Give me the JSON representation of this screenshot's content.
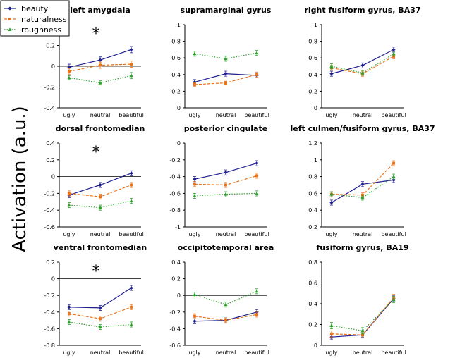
{
  "figure": {
    "ylabel": "Activation (a.u.)"
  },
  "legend": [
    {
      "name": "beauty",
      "color": "#1f1f8f",
      "marker": "diamond",
      "dash": "solid"
    },
    {
      "name": "naturalness",
      "color": "#e8731a",
      "marker": "square",
      "dash": "dashed"
    },
    {
      "name": "roughness",
      "color": "#2ea02e",
      "marker": "triangle",
      "dash": "dotted"
    }
  ],
  "chart_data": [
    {
      "type": "line",
      "title": "left amygdala",
      "categories": [
        "ugly",
        "neutral",
        "beautiful"
      ],
      "ylim": [
        -0.4,
        0.4
      ],
      "yticks": [
        "-0.4",
        "-0.2",
        "0",
        "0.2",
        "0.4"
      ],
      "star": "*",
      "series": [
        {
          "name": "beauty",
          "values": [
            -0.01,
            0.06,
            0.16
          ],
          "err": [
            0.03,
            0.03,
            0.03
          ]
        },
        {
          "name": "naturalness",
          "values": [
            -0.05,
            0.01,
            0.02
          ],
          "err": [
            0.03,
            0.03,
            0.03
          ]
        },
        {
          "name": "roughness",
          "values": [
            -0.11,
            -0.16,
            -0.09
          ],
          "err": [
            0.02,
            0.02,
            0.03
          ]
        }
      ]
    },
    {
      "type": "line",
      "title": "supramarginal gyrus",
      "categories": [
        "ugly",
        "neutral",
        "beautiful"
      ],
      "ylim": [
        0,
        1
      ],
      "yticks": [
        "0",
        "0.2",
        "0.4",
        "0.6",
        "0.8",
        "1"
      ],
      "star": "",
      "series": [
        {
          "name": "beauty",
          "values": [
            0.31,
            0.41,
            0.39
          ],
          "err": [
            0.03,
            0.03,
            0.03
          ]
        },
        {
          "name": "naturalness",
          "values": [
            0.28,
            0.3,
            0.4
          ],
          "err": [
            0.02,
            0.02,
            0.03
          ]
        },
        {
          "name": "roughness",
          "values": [
            0.65,
            0.59,
            0.66
          ],
          "err": [
            0.03,
            0.03,
            0.03
          ]
        }
      ]
    },
    {
      "type": "line",
      "title": "right fusiform gyrus, BA37",
      "categories": [
        "ugly",
        "neutral",
        "beautiful"
      ],
      "ylim": [
        0,
        1
      ],
      "yticks": [
        "0",
        "0.2",
        "0.4",
        "0.6",
        "0.8",
        "1"
      ],
      "star": "",
      "series": [
        {
          "name": "beauty",
          "values": [
            0.41,
            0.51,
            0.7
          ],
          "err": [
            0.03,
            0.03,
            0.03
          ]
        },
        {
          "name": "naturalness",
          "values": [
            0.48,
            0.41,
            0.62
          ],
          "err": [
            0.03,
            0.03,
            0.03
          ]
        },
        {
          "name": "roughness",
          "values": [
            0.5,
            0.42,
            0.65
          ],
          "err": [
            0.03,
            0.03,
            0.03
          ]
        }
      ]
    },
    {
      "type": "line",
      "title": "dorsal frontomedian",
      "categories": [
        "ugly",
        "neutral",
        "beautiful"
      ],
      "ylim": [
        -0.6,
        0.4
      ],
      "yticks": [
        "-0.6",
        "-0.4",
        "-0.2",
        "0",
        "0.2",
        "0.4"
      ],
      "star": "*",
      "series": [
        {
          "name": "beauty",
          "values": [
            -0.22,
            -0.1,
            0.04
          ],
          "err": [
            0.03,
            0.03,
            0.03
          ]
        },
        {
          "name": "naturalness",
          "values": [
            -0.2,
            -0.24,
            -0.1
          ],
          "err": [
            0.03,
            0.03,
            0.03
          ]
        },
        {
          "name": "roughness",
          "values": [
            -0.34,
            -0.37,
            -0.29
          ],
          "err": [
            0.03,
            0.03,
            0.03
          ]
        }
      ]
    },
    {
      "type": "line",
      "title": "posterior cingulate",
      "categories": [
        "ugly",
        "neutral",
        "beautiful"
      ],
      "ylim": [
        -1,
        0
      ],
      "yticks": [
        "-1",
        "-0.8",
        "-0.6",
        "-0.4",
        "-0.2",
        "0"
      ],
      "star": "",
      "series": [
        {
          "name": "beauty",
          "values": [
            -0.43,
            -0.35,
            -0.24
          ],
          "err": [
            0.03,
            0.03,
            0.03
          ]
        },
        {
          "name": "naturalness",
          "values": [
            -0.49,
            -0.5,
            -0.39
          ],
          "err": [
            0.03,
            0.03,
            0.03
          ]
        },
        {
          "name": "roughness",
          "values": [
            -0.63,
            -0.61,
            -0.6
          ],
          "err": [
            0.03,
            0.03,
            0.03
          ]
        }
      ]
    },
    {
      "type": "line",
      "title": "left culmen/fusiform gyrus, BA37",
      "categories": [
        "ugly",
        "neutral",
        "beautiful"
      ],
      "ylim": [
        0.2,
        1.2
      ],
      "yticks": [
        "0.2",
        "0.4",
        "0.6",
        "0.8",
        "1",
        "1.2"
      ],
      "star": "",
      "series": [
        {
          "name": "beauty",
          "values": [
            0.49,
            0.71,
            0.76
          ],
          "err": [
            0.03,
            0.03,
            0.03
          ]
        },
        {
          "name": "naturalness",
          "values": [
            0.59,
            0.58,
            0.96
          ],
          "err": [
            0.03,
            0.03,
            0.03
          ]
        },
        {
          "name": "roughness",
          "values": [
            0.59,
            0.55,
            0.8
          ],
          "err": [
            0.03,
            0.03,
            0.03
          ]
        }
      ]
    },
    {
      "type": "line",
      "title": "ventral frontomedian",
      "categories": [
        "ugly",
        "neutral",
        "beautiful"
      ],
      "ylim": [
        -0.8,
        0.2
      ],
      "yticks": [
        "-0.8",
        "-0.6",
        "-0.4",
        "-0.2",
        "0",
        "0.2"
      ],
      "star": "*",
      "series": [
        {
          "name": "beauty",
          "values": [
            -0.34,
            -0.35,
            -0.11
          ],
          "err": [
            0.03,
            0.03,
            0.03
          ]
        },
        {
          "name": "naturalness",
          "values": [
            -0.42,
            -0.48,
            -0.34
          ],
          "err": [
            0.03,
            0.03,
            0.03
          ]
        },
        {
          "name": "roughness",
          "values": [
            -0.52,
            -0.58,
            -0.55
          ],
          "err": [
            0.03,
            0.03,
            0.03
          ]
        }
      ]
    },
    {
      "type": "line",
      "title": "occipitotemporal area",
      "categories": [
        "ugly",
        "neutral",
        "beautiful"
      ],
      "ylim": [
        -0.6,
        0.4
      ],
      "yticks": [
        "-0.6",
        "-0.4",
        "-0.2",
        "0",
        "0.2",
        "0.4"
      ],
      "star": "",
      "series": [
        {
          "name": "beauty",
          "values": [
            -0.31,
            -0.3,
            -0.2
          ],
          "err": [
            0.03,
            0.03,
            0.03
          ]
        },
        {
          "name": "naturalness",
          "values": [
            -0.25,
            -0.3,
            -0.23
          ],
          "err": [
            0.03,
            0.03,
            0.03
          ]
        },
        {
          "name": "roughness",
          "values": [
            0.01,
            -0.11,
            0.05
          ],
          "err": [
            0.03,
            0.03,
            0.03
          ]
        }
      ]
    },
    {
      "type": "line",
      "title": "fusiform gyrus, BA19",
      "categories": [
        "ugly",
        "neutral",
        "beautiful"
      ],
      "ylim": [
        0,
        0.8
      ],
      "yticks": [
        "0",
        "0.2",
        "0.4",
        "0.6",
        "0.8"
      ],
      "star": "",
      "series": [
        {
          "name": "beauty",
          "values": [
            0.08,
            0.1,
            0.45
          ],
          "err": [
            0.02,
            0.02,
            0.03
          ]
        },
        {
          "name": "naturalness",
          "values": [
            0.11,
            0.1,
            0.46
          ],
          "err": [
            0.03,
            0.03,
            0.03
          ]
        },
        {
          "name": "roughness",
          "values": [
            0.19,
            0.14,
            0.44
          ],
          "err": [
            0.03,
            0.03,
            0.03
          ]
        }
      ]
    }
  ]
}
